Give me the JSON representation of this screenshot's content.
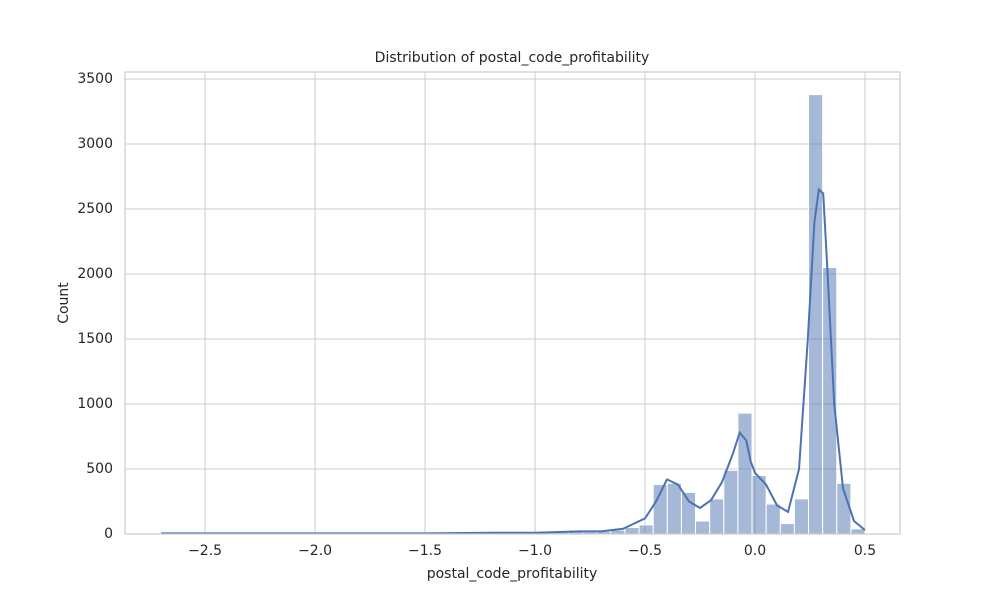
{
  "chart_data": {
    "type": "histogram",
    "title": "Distribution of postal_code_profitability",
    "x_label": "postal_code_profitability",
    "y_label": "Count",
    "bins": [
      -2.71,
      -2.6458,
      -2.5816,
      -2.5174,
      -2.4532,
      -2.389,
      -2.3248,
      -2.2606,
      -2.1964,
      -2.1322,
      -2.068,
      -2.0038,
      -1.9396,
      -1.8754,
      -1.8112,
      -1.747,
      -1.6828,
      -1.6186,
      -1.5544,
      -1.4902,
      -1.426,
      -1.3618,
      -1.2976,
      -1.2334,
      -1.1692,
      -1.105,
      -1.0408,
      -0.9766,
      -0.9124,
      -0.8482,
      -0.784,
      -0.7198,
      -0.6556,
      -0.5914,
      -0.5272,
      -0.463,
      -0.3988,
      -0.3346,
      -0.2704,
      -0.2062,
      -0.142,
      -0.0778,
      -0.0136,
      0.0506,
      0.1148,
      0.179,
      0.2432,
      0.3074,
      0.3716,
      0.4358,
      0.5
    ],
    "values": [
      5,
      3,
      2,
      1,
      2,
      1,
      1,
      1,
      1,
      2,
      1,
      2,
      3,
      2,
      2,
      3,
      4,
      3,
      5,
      6,
      8,
      10,
      12,
      10,
      9,
      8,
      12,
      15,
      20,
      18,
      15,
      20,
      30,
      50,
      70,
      380,
      390,
      320,
      100,
      270,
      490,
      930,
      450,
      230,
      80,
      270,
      3380,
      2050,
      390,
      40
    ],
    "color": "#4c72b0",
    "kde": {
      "x": [
        -2.7,
        -2.0,
        -1.5,
        -1.2,
        -1.0,
        -0.8,
        -0.7,
        -0.6,
        -0.5,
        -0.45,
        -0.4,
        -0.35,
        -0.3,
        -0.25,
        -0.2,
        -0.15,
        -0.1,
        -0.07,
        -0.04,
        -0.02,
        0.0,
        0.05,
        0.1,
        0.15,
        0.2,
        0.24,
        0.27,
        0.29,
        0.31,
        0.33,
        0.36,
        0.4,
        0.45,
        0.5
      ],
      "values": [
        5,
        5,
        5,
        10,
        10,
        20,
        20,
        40,
        120,
        250,
        420,
        380,
        250,
        200,
        260,
        400,
        620,
        780,
        720,
        560,
        470,
        380,
        220,
        170,
        500,
        1500,
        2400,
        2650,
        2620,
        2000,
        1000,
        350,
        100,
        30
      ]
    },
    "xlim": [
      -2.864,
      0.659
    ],
    "ylim": [
      0,
      3554
    ],
    "xticks": [
      {
        "value": -2.5,
        "label": "−2.5"
      },
      {
        "value": -2.0,
        "label": "−2.0"
      },
      {
        "value": -1.5,
        "label": "−1.5"
      },
      {
        "value": -1.0,
        "label": "−1.0"
      },
      {
        "value": -0.5,
        "label": "−0.5"
      },
      {
        "value": 0,
        "label": "0.0"
      },
      0.5
    ],
    "yticks": [
      0,
      500,
      1000,
      1500,
      2000,
      2500,
      3000,
      3500
    ],
    "grid": true
  }
}
